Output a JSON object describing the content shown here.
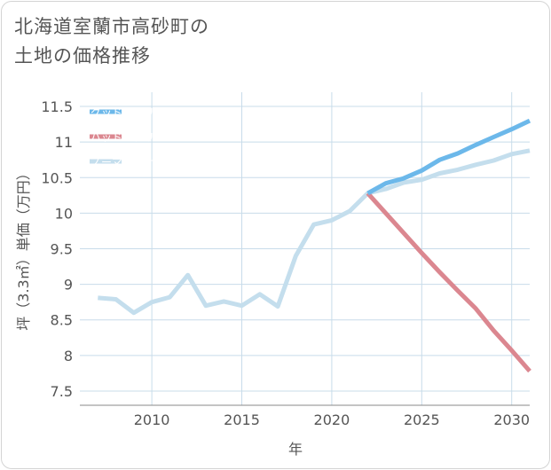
{
  "title_lines": [
    "北海道室蘭市高砂町の",
    "土地の価格推移"
  ],
  "colors": {
    "good": "#6cb8ea",
    "bad": "#db8790",
    "normal": "#c4deed",
    "grid": "#c8dcea",
    "axis": "#888888"
  },
  "chart_data": {
    "type": "line",
    "title": "北海道室蘭市高砂町の土地の価格推移",
    "xlabel": "年",
    "ylabel": "坪（3.3㎡）単価（万円）",
    "xlim": [
      2006,
      2031
    ],
    "ylim": [
      7.3,
      11.7
    ],
    "xticks": [
      2010,
      2015,
      2020,
      2025,
      2030
    ],
    "xtick_labels": [
      "2010",
      "2015",
      "2020",
      "2025",
      "2030"
    ],
    "yticks": [
      7.5,
      8,
      8.5,
      9,
      9.5,
      10,
      10.5,
      11,
      11.5
    ],
    "ytick_labels": [
      "7.5",
      "8",
      "8.5",
      "9",
      "9.5",
      "10",
      "10.5",
      "11",
      "11.5"
    ],
    "legend_position": "top-left",
    "series": [
      {
        "name": "グッドシナリオ",
        "key": "good",
        "x": [
          2022,
          2023,
          2024,
          2025,
          2026,
          2027,
          2028,
          2029,
          2030,
          2031
        ],
        "y": [
          10.28,
          10.42,
          10.49,
          10.6,
          10.75,
          10.84,
          10.96,
          11.07,
          11.18,
          11.3
        ]
      },
      {
        "name": "バッドシナリオ",
        "key": "bad",
        "x": [
          2022,
          2023,
          2024,
          2025,
          2026,
          2027,
          2028,
          2029,
          2030,
          2031
        ],
        "y": [
          10.28,
          10.0,
          9.72,
          9.44,
          9.17,
          8.91,
          8.66,
          8.35,
          8.07,
          7.78
        ]
      },
      {
        "name": "ノーマルシナリオ",
        "key": "normal",
        "x": [
          2007,
          2008,
          2009,
          2010,
          2011,
          2012,
          2013,
          2014,
          2015,
          2016,
          2017,
          2018,
          2019,
          2020,
          2021,
          2022,
          2023,
          2024,
          2025,
          2026,
          2027,
          2028,
          2029,
          2030,
          2031
        ],
        "y": [
          8.81,
          8.79,
          8.6,
          8.75,
          8.82,
          9.13,
          8.7,
          8.76,
          8.7,
          8.86,
          8.69,
          9.4,
          9.84,
          9.9,
          10.03,
          10.28,
          10.34,
          10.43,
          10.47,
          10.56,
          10.61,
          10.68,
          10.74,
          10.83,
          10.88
        ]
      }
    ]
  }
}
